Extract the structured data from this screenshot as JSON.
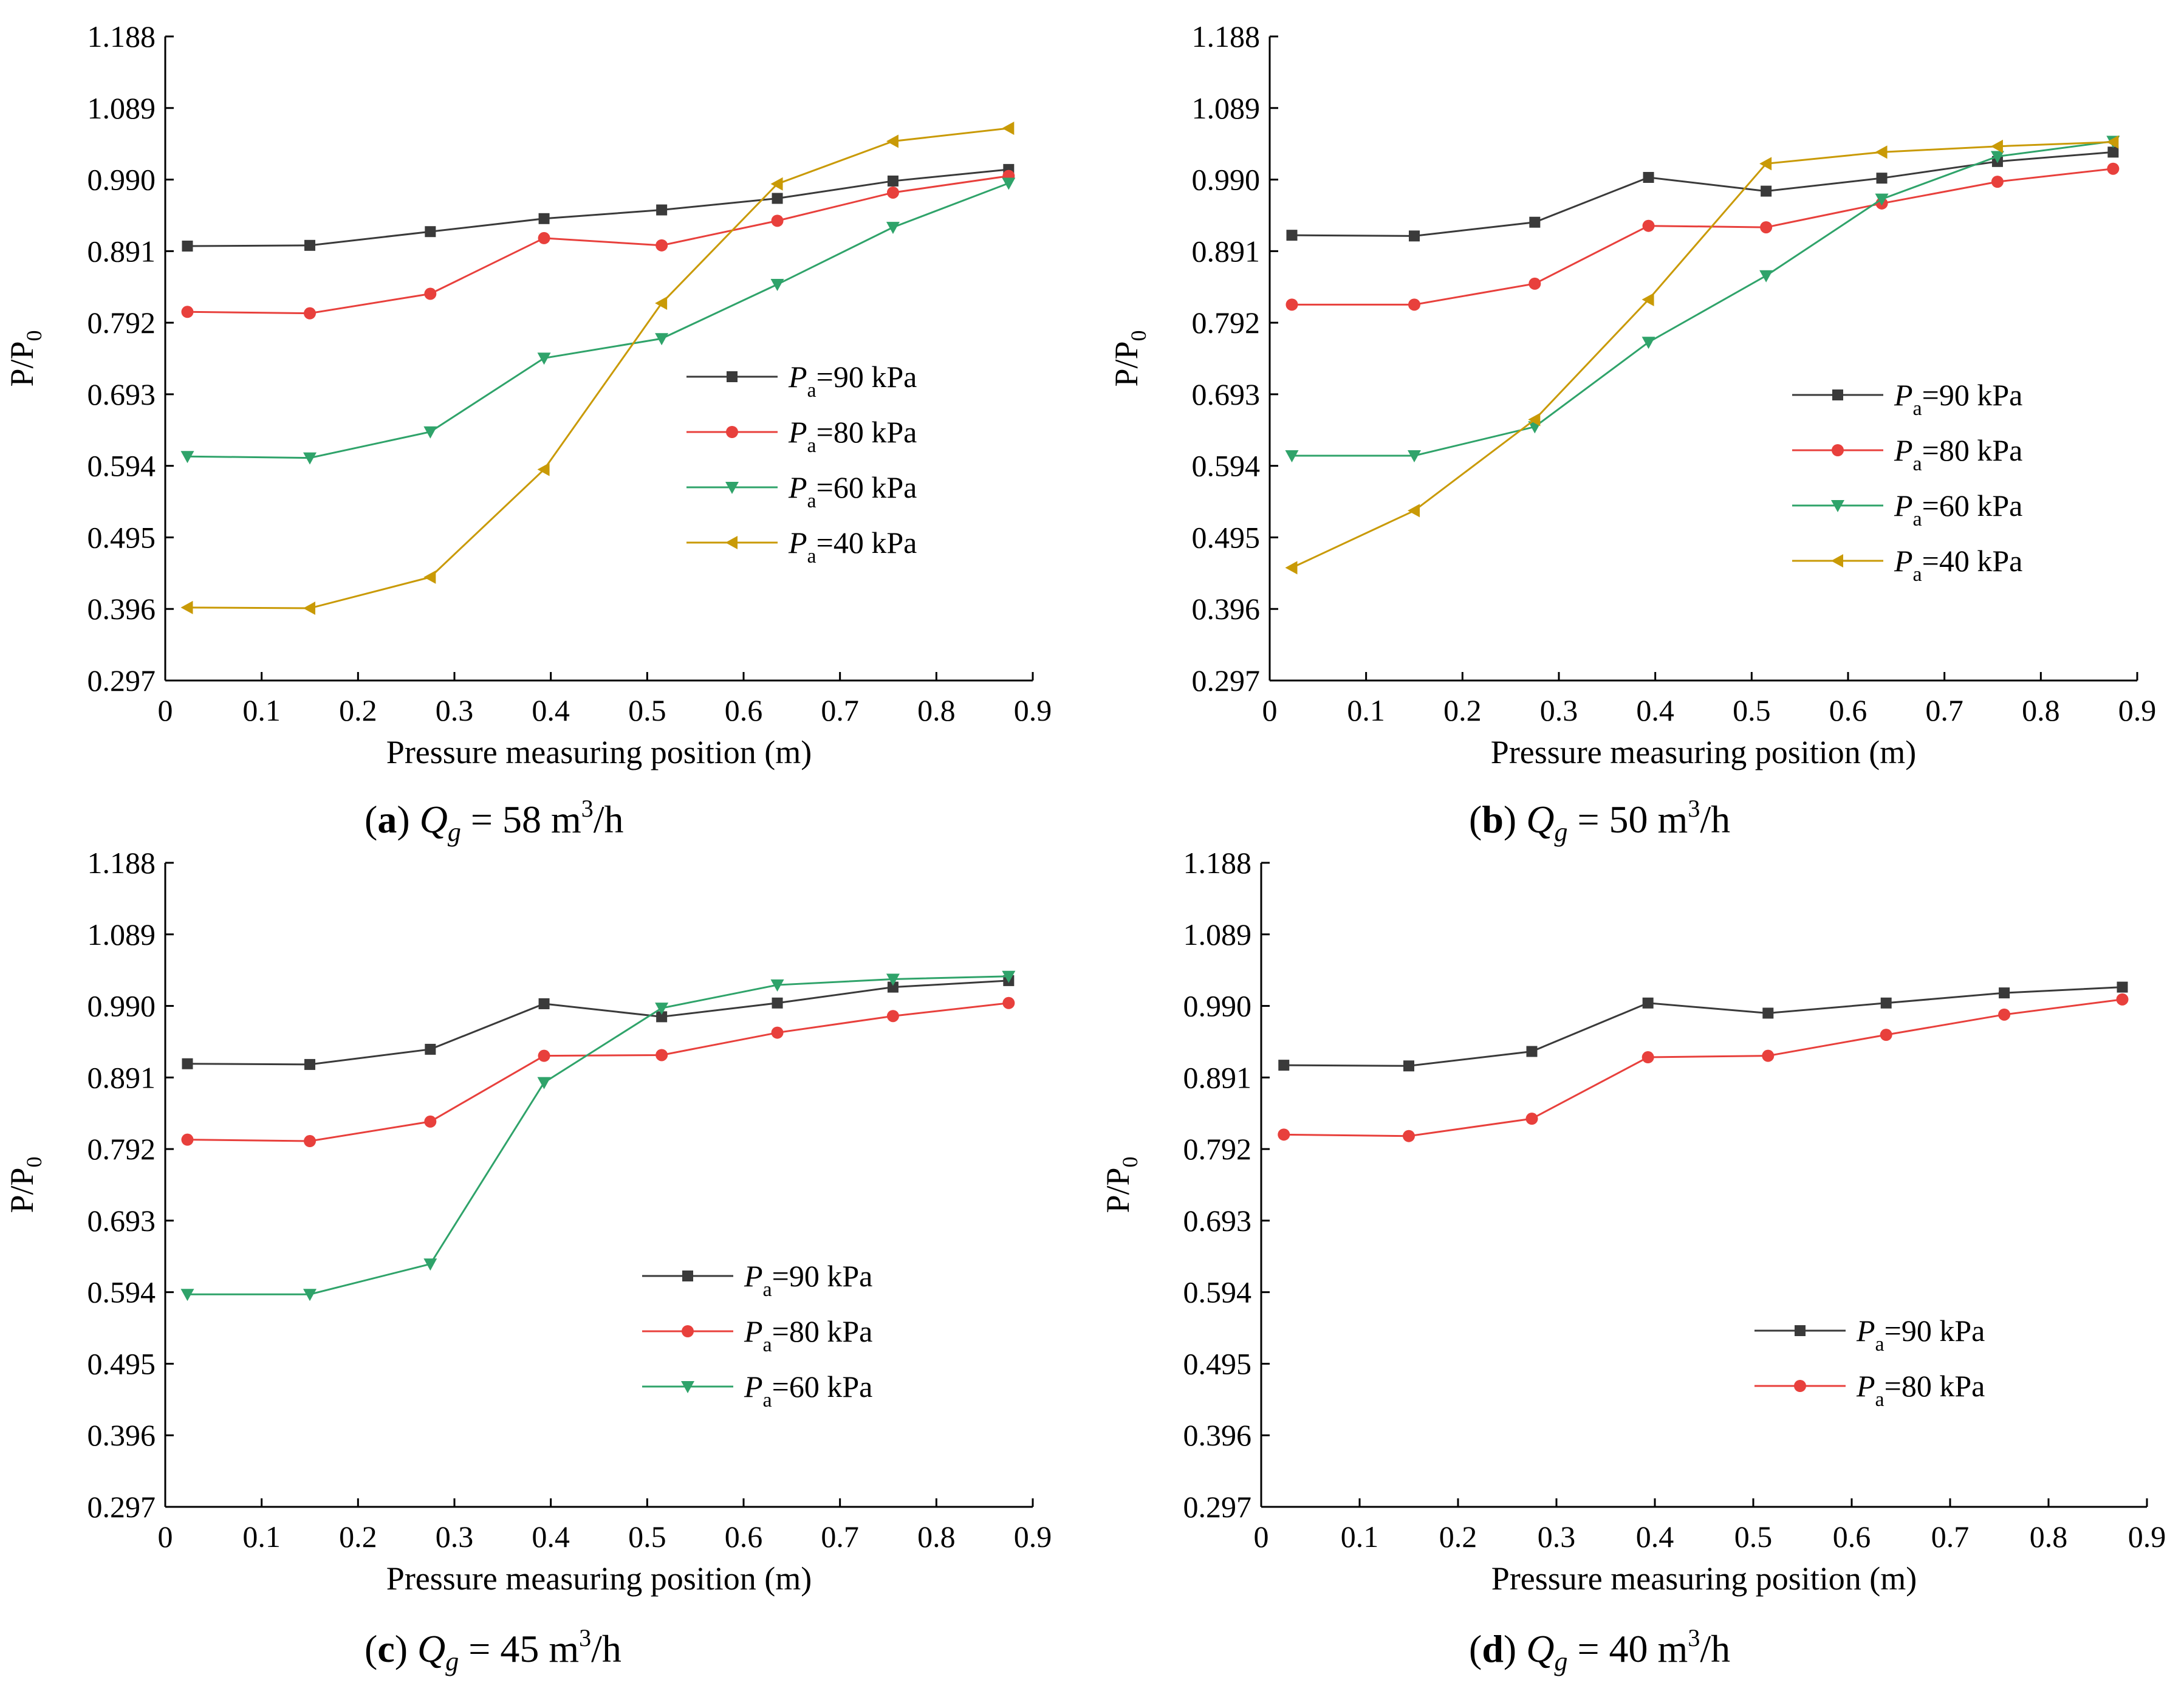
{
  "chart_data": [
    {
      "type": "line",
      "caption": {
        "letter": "a",
        "flow_symbol": "Q",
        "flow_subscript": "g",
        "value": "58",
        "unit_base": "m",
        "unit_exp": "3",
        "unit_tail": "/h"
      },
      "xlabel": "Pressure measuring position (m)",
      "ylabel": {
        "base": "P/P",
        "sub": "0"
      },
      "xlim": [
        0,
        0.9
      ],
      "ylim": [
        0.297,
        1.188
      ],
      "x_ticks": [
        "0",
        "0.1",
        "0.2",
        "0.3",
        "0.4",
        "0.5",
        "0.6",
        "0.7",
        "0.8",
        "0.9"
      ],
      "y_ticks": [
        "0.297",
        "0.396",
        "0.495",
        "0.594",
        "0.693",
        "0.792",
        "0.891",
        "0.990",
        "1.089",
        "1.188"
      ],
      "x": [
        0.023,
        0.15,
        0.275,
        0.393,
        0.515,
        0.635,
        0.755,
        0.875
      ],
      "legend_position": "center-right",
      "series": [
        {
          "name": "P",
          "sub": "a",
          "suffix": "=90 kPa",
          "color": "#3a3a3a",
          "marker": "square",
          "values": [
            0.898,
            0.899,
            0.918,
            0.936,
            0.948,
            0.964,
            0.988,
            1.004
          ]
        },
        {
          "name": "P",
          "sub": "a",
          "suffix": "=80 kPa",
          "color": "#e8403c",
          "marker": "circle",
          "values": [
            0.807,
            0.805,
            0.832,
            0.909,
            0.899,
            0.933,
            0.972,
            0.995
          ]
        },
        {
          "name": "P",
          "sub": "a",
          "suffix": "=60 kPa",
          "color": "#2fa36a",
          "marker": "triangle-down",
          "values": [
            0.607,
            0.605,
            0.641,
            0.743,
            0.77,
            0.845,
            0.924,
            0.985
          ]
        },
        {
          "name": "P",
          "sub": "a",
          "suffix": "=40 kPa",
          "color": "#c99a06",
          "marker": "triangle-left",
          "values": [
            0.398,
            0.397,
            0.44,
            0.589,
            0.819,
            0.984,
            1.043,
            1.061
          ]
        }
      ]
    },
    {
      "type": "line",
      "caption": {
        "letter": "b",
        "flow_symbol": "Q",
        "flow_subscript": "g",
        "value": "50",
        "unit_base": "m",
        "unit_exp": "3",
        "unit_tail": "/h"
      },
      "xlabel": "Pressure measuring position (m)",
      "ylabel": {
        "base": "P/P",
        "sub": "0"
      },
      "xlim": [
        0,
        0.9
      ],
      "ylim": [
        0.297,
        1.188
      ],
      "x_ticks": [
        "0",
        "0.1",
        "0.2",
        "0.3",
        "0.4",
        "0.5",
        "0.6",
        "0.7",
        "0.8",
        "0.9"
      ],
      "y_ticks": [
        "0.297",
        "0.396",
        "0.495",
        "0.594",
        "0.693",
        "0.792",
        "0.891",
        "0.990",
        "1.089",
        "1.188"
      ],
      "x": [
        0.023,
        0.15,
        0.275,
        0.393,
        0.515,
        0.635,
        0.755,
        0.875
      ],
      "legend_position": "center-right",
      "series": [
        {
          "name": "P",
          "sub": "a",
          "suffix": "=90 kPa",
          "color": "#3a3a3a",
          "marker": "square",
          "values": [
            0.913,
            0.912,
            0.931,
            0.993,
            0.974,
            0.992,
            1.015,
            1.028
          ]
        },
        {
          "name": "P",
          "sub": "a",
          "suffix": "=80 kPa",
          "color": "#e8403c",
          "marker": "circle",
          "values": [
            0.817,
            0.817,
            0.846,
            0.926,
            0.924,
            0.957,
            0.987,
            1.005
          ]
        },
        {
          "name": "P",
          "sub": "a",
          "suffix": "=60 kPa",
          "color": "#2fa36a",
          "marker": "triangle-down",
          "values": [
            0.608,
            0.608,
            0.648,
            0.765,
            0.857,
            0.963,
            1.022,
            1.043
          ]
        },
        {
          "name": "P",
          "sub": "a",
          "suffix": "=40 kPa",
          "color": "#c99a06",
          "marker": "triangle-left",
          "values": [
            0.453,
            0.532,
            0.658,
            0.824,
            1.012,
            1.028,
            1.036,
            1.042
          ]
        }
      ]
    },
    {
      "type": "line",
      "caption": {
        "letter": "c",
        "flow_symbol": "Q",
        "flow_subscript": "g",
        "value": "45",
        "unit_base": "m",
        "unit_exp": "3",
        "unit_tail": "/h"
      },
      "xlabel": "Pressure measuring position (m)",
      "ylabel": {
        "base": "P/P",
        "sub": "0"
      },
      "xlim": [
        0,
        0.9
      ],
      "ylim": [
        0.297,
        1.188
      ],
      "x_ticks": [
        "0",
        "0.1",
        "0.2",
        "0.3",
        "0.4",
        "0.5",
        "0.6",
        "0.7",
        "0.8",
        "0.9"
      ],
      "y_ticks": [
        "0.297",
        "0.396",
        "0.495",
        "0.594",
        "0.693",
        "0.792",
        "0.891",
        "0.990",
        "1.089",
        "1.188"
      ],
      "x": [
        0.023,
        0.15,
        0.275,
        0.393,
        0.515,
        0.635,
        0.755,
        0.875
      ],
      "legend_position": "center-right",
      "series": [
        {
          "name": "P",
          "sub": "a",
          "suffix": "=90 kPa",
          "color": "#3a3a3a",
          "marker": "square",
          "values": [
            0.91,
            0.909,
            0.93,
            0.993,
            0.975,
            0.994,
            1.016,
            1.025
          ]
        },
        {
          "name": "P",
          "sub": "a",
          "suffix": "=80 kPa",
          "color": "#e8403c",
          "marker": "circle",
          "values": [
            0.805,
            0.803,
            0.83,
            0.921,
            0.922,
            0.953,
            0.976,
            0.994
          ]
        },
        {
          "name": "P",
          "sub": "a",
          "suffix": "=60 kPa",
          "color": "#2fa36a",
          "marker": "triangle-down",
          "values": [
            0.591,
            0.591,
            0.633,
            0.884,
            0.987,
            1.019,
            1.027,
            1.031
          ]
        }
      ]
    },
    {
      "type": "line",
      "caption": {
        "letter": "d",
        "flow_symbol": "Q",
        "flow_subscript": "g",
        "value": "40",
        "unit_base": "m",
        "unit_exp": "3",
        "unit_tail": "/h"
      },
      "xlabel": "Pressure measuring position (m)",
      "ylabel": {
        "base": "P/P",
        "sub": "0"
      },
      "xlim": [
        0,
        0.9
      ],
      "ylim": [
        0.297,
        1.188
      ],
      "x_ticks": [
        "0",
        "0.1",
        "0.2",
        "0.3",
        "0.4",
        "0.5",
        "0.6",
        "0.7",
        "0.8",
        "0.9"
      ],
      "y_ticks": [
        "0.297",
        "0.396",
        "0.495",
        "0.594",
        "0.693",
        "0.792",
        "0.891",
        "0.990",
        "1.089",
        "1.188"
      ],
      "x": [
        0.023,
        0.15,
        0.275,
        0.393,
        0.515,
        0.635,
        0.755,
        0.875
      ],
      "legend_position": "center-right",
      "series": [
        {
          "name": "P",
          "sub": "a",
          "suffix": "=90 kPa",
          "color": "#3a3a3a",
          "marker": "square",
          "values": [
            0.908,
            0.907,
            0.927,
            0.994,
            0.98,
            0.994,
            1.008,
            1.016
          ]
        },
        {
          "name": "P",
          "sub": "a",
          "suffix": "=80 kPa",
          "color": "#e8403c",
          "marker": "circle",
          "values": [
            0.812,
            0.81,
            0.834,
            0.919,
            0.921,
            0.95,
            0.978,
            0.999
          ]
        }
      ]
    }
  ]
}
